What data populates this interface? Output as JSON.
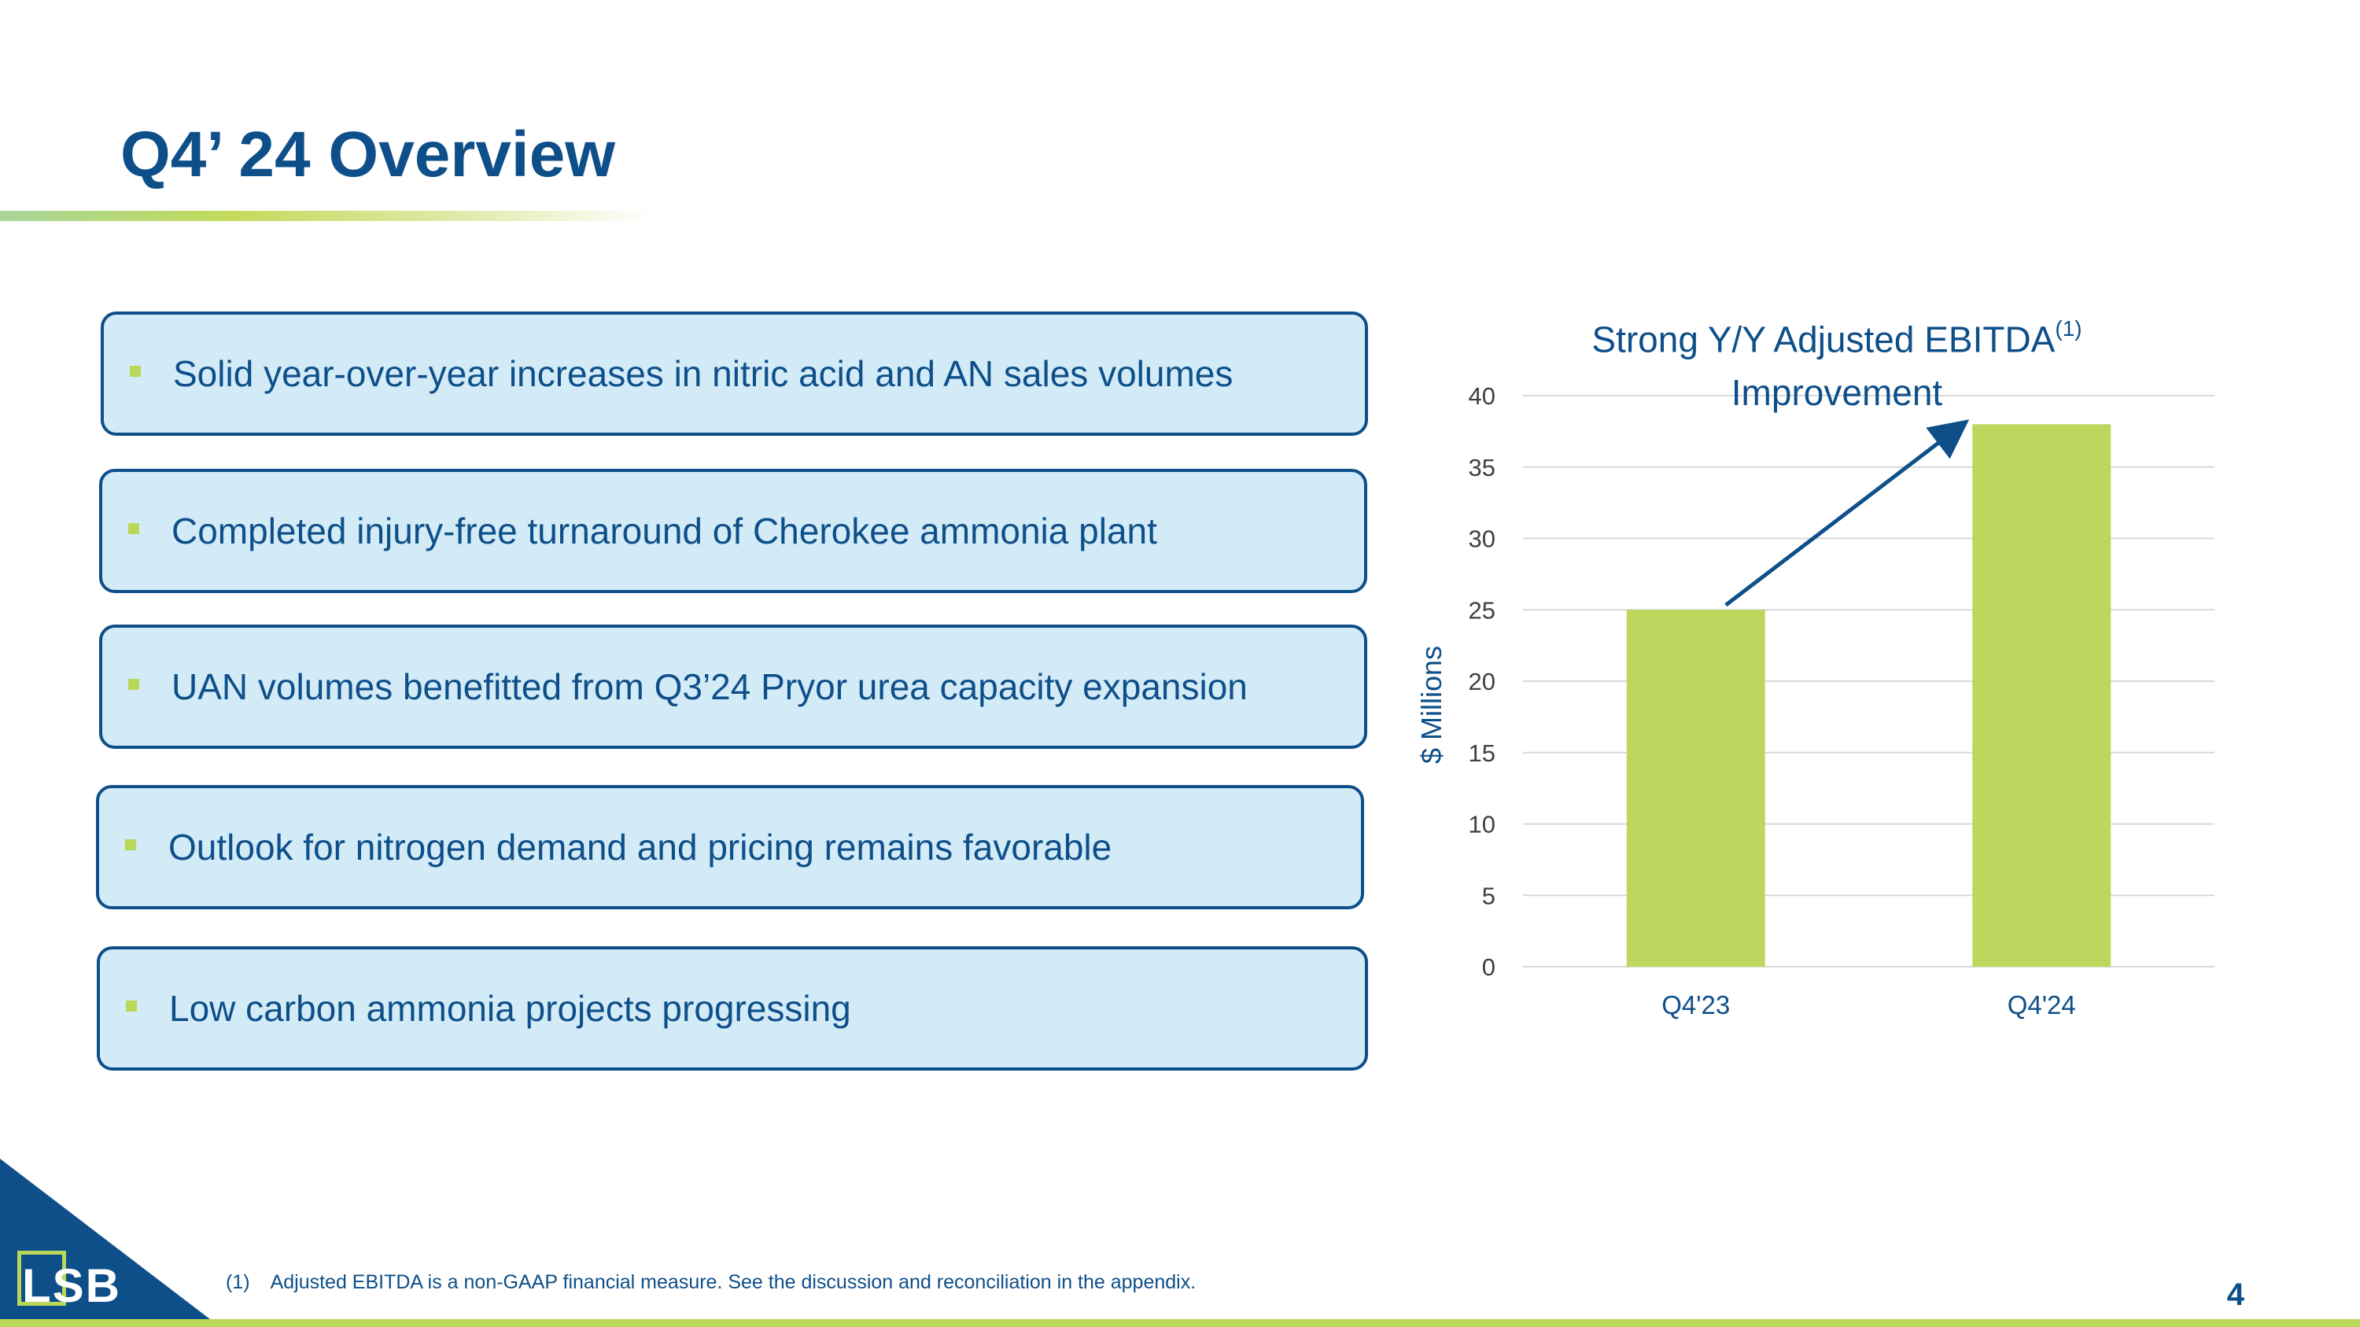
{
  "slide": {
    "title": "Q4’ 24 Overview",
    "page_number": "4",
    "logo_text": "LSB",
    "footnote_marker": "(1)",
    "footnote_text": "Adjusted EBITDA is a non-GAAP financial measure.  See the discussion and reconciliation in the appendix."
  },
  "highlights": [
    "Solid year-over-year increases in nitric acid and AN sales volumes",
    "Completed injury-free turnaround of Cherokee ammonia plant",
    "UAN volumes benefitted from Q3’24 Pryor urea capacity expansion",
    "Outlook for nitrogen demand and pricing remains favorable",
    "Low carbon ammonia projects progressing"
  ],
  "colors": {
    "brand_blue": "#0e4f8a",
    "accent_green": "#b9d85a",
    "card_fill": "#d3ebf7"
  },
  "chart_data": {
    "type": "bar",
    "title": "Strong Y/Y Adjusted EBITDA",
    "title_superscript": "(1)",
    "title_line2": "Improvement",
    "xlabel": "",
    "ylabel": "$ Millions",
    "categories": [
      "Q4'23",
      "Q4'24"
    ],
    "values": [
      25,
      38
    ],
    "ylim": [
      0,
      40
    ],
    "yticks": [
      0,
      5,
      10,
      15,
      20,
      25,
      30,
      35,
      40
    ],
    "grid": true,
    "bar_color": "#bdd75e",
    "annotation": "arrow indicating increase from Q4'23 to Q4'24"
  }
}
